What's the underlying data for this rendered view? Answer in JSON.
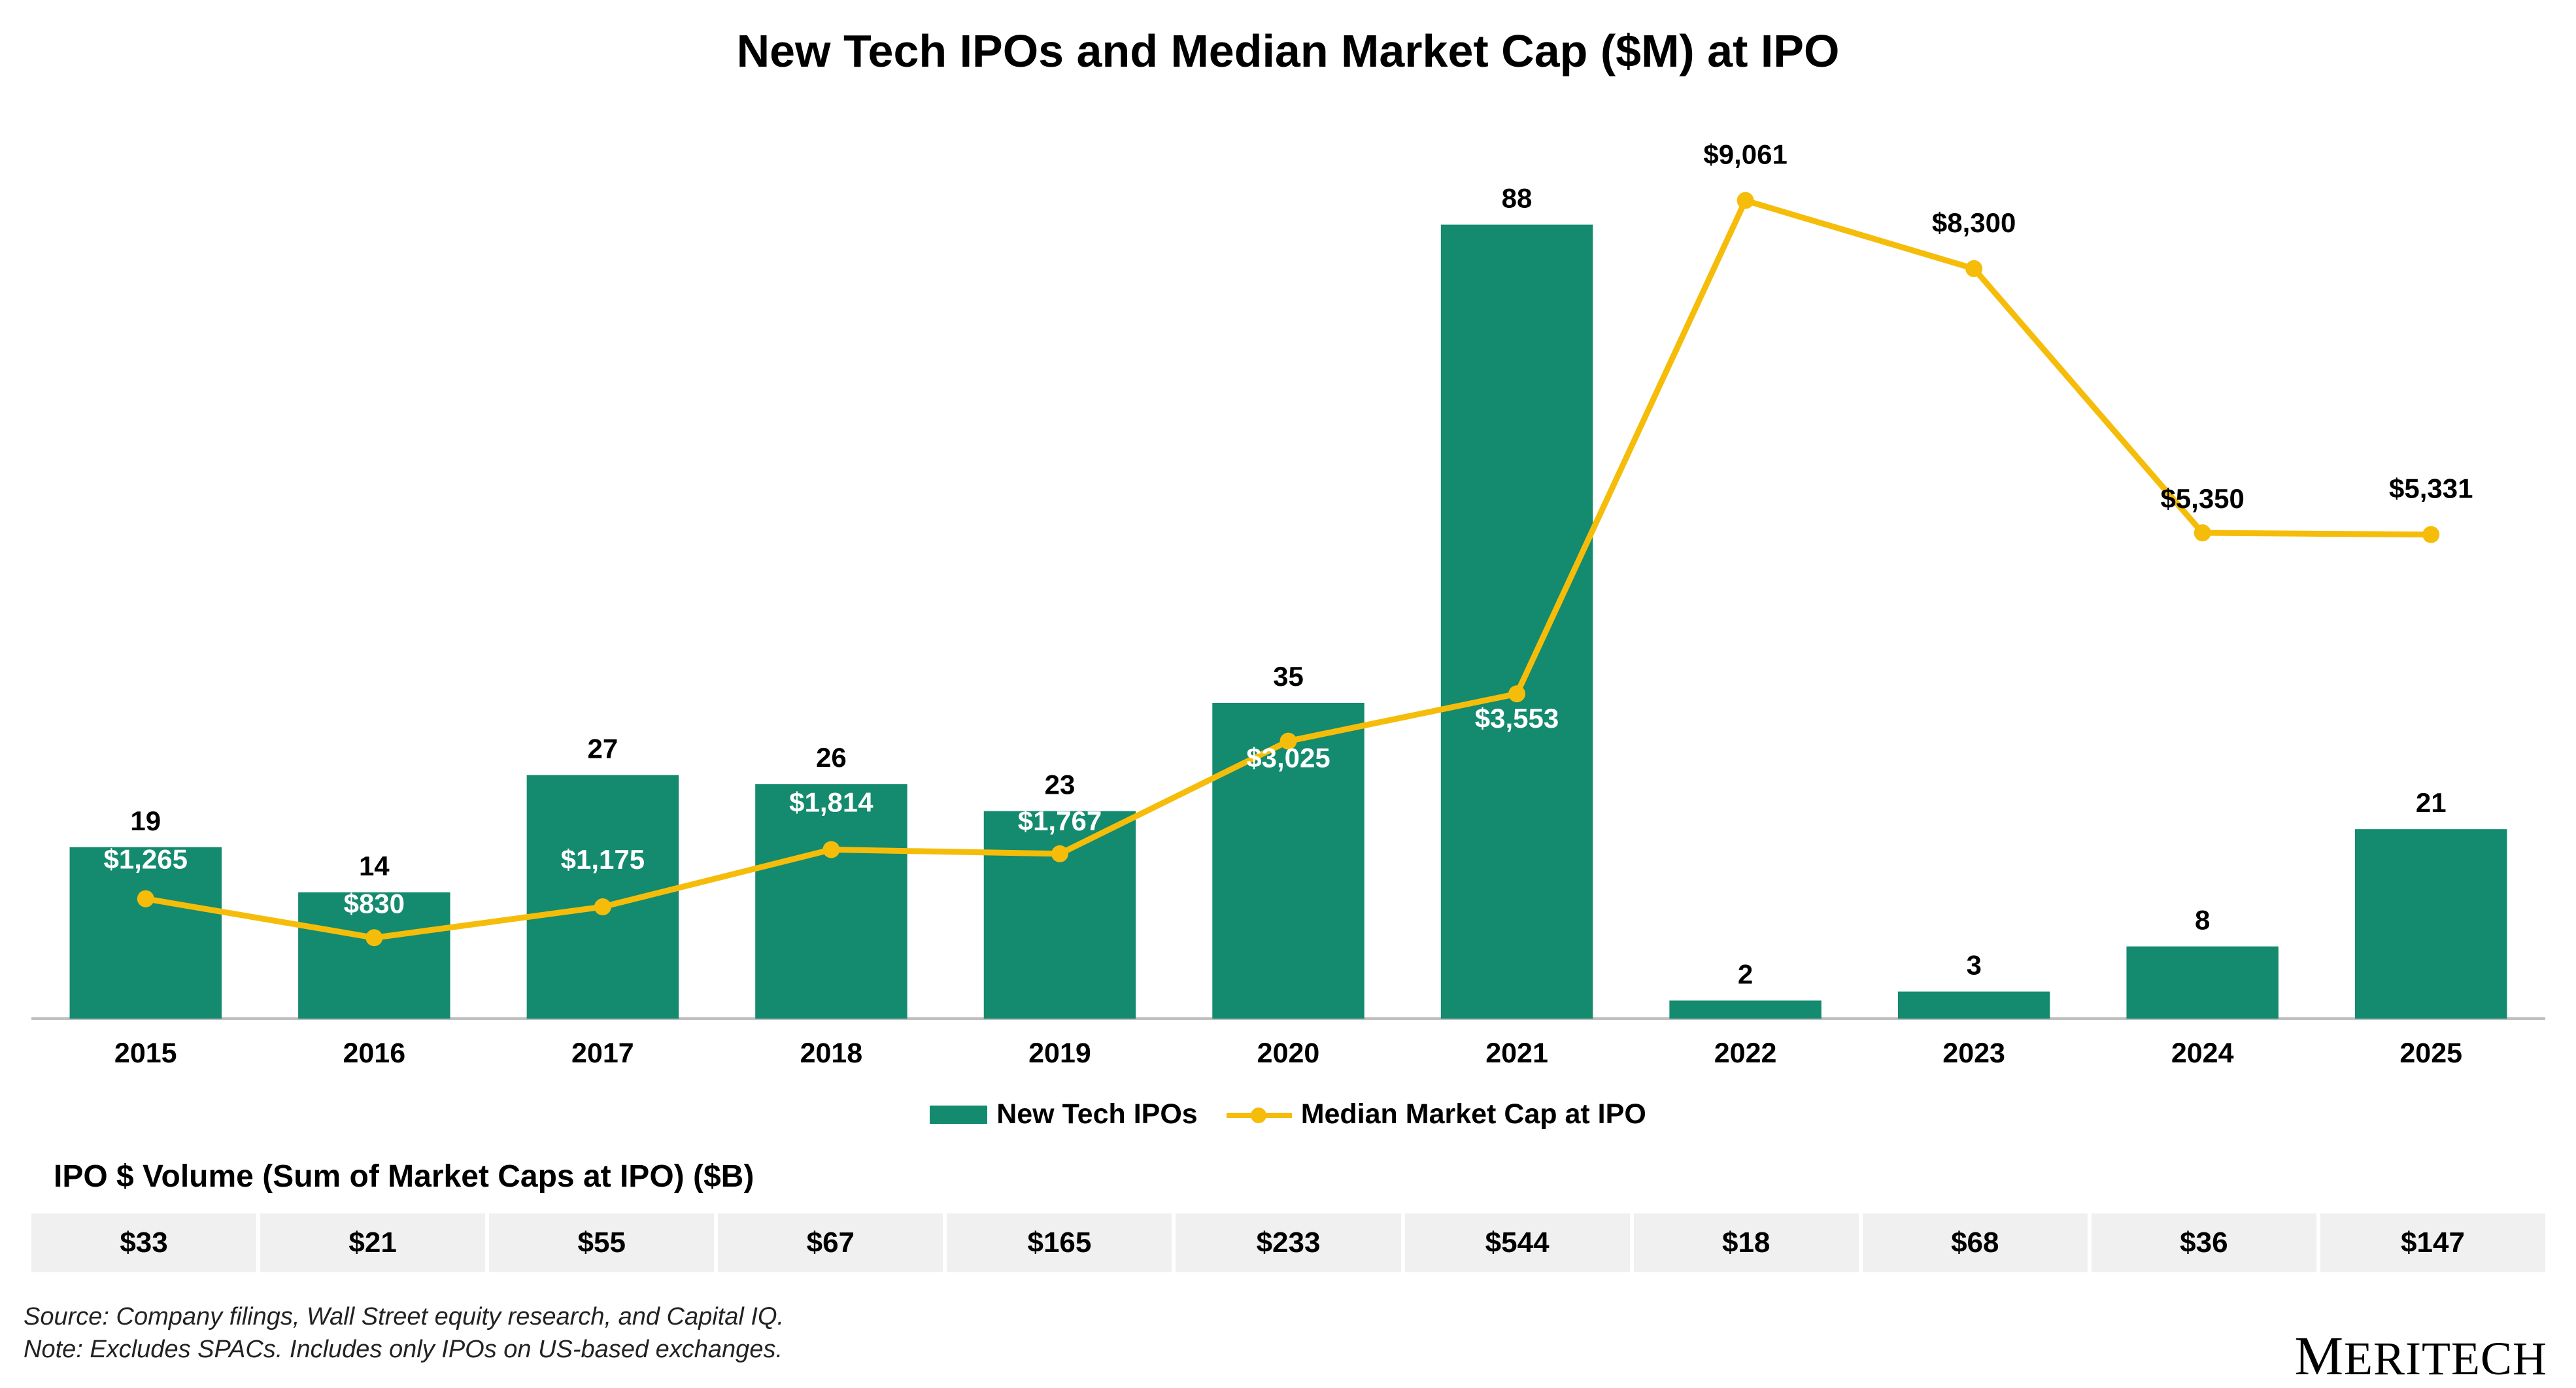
{
  "title": "New Tech IPOs and Median Market Cap ($M) at IPO",
  "colors": {
    "bar": "#148A6E",
    "line": "#F5BD0A",
    "table_bg": "#F0F0F0"
  },
  "chart_data": {
    "type": "bar+line",
    "categories": [
      "2015",
      "2016",
      "2017",
      "2018",
      "2019",
      "2020",
      "2021",
      "2022",
      "2023",
      "2024",
      "2025"
    ],
    "series": [
      {
        "name": "New Tech IPOs",
        "type": "bar",
        "axis": "left",
        "values": [
          19,
          14,
          27,
          26,
          23,
          35,
          88,
          2,
          3,
          8,
          21
        ],
        "labels": [
          "19",
          "14",
          "27",
          "26",
          "23",
          "35",
          "88",
          "2",
          "3",
          "8",
          "21"
        ]
      },
      {
        "name": "Median Market Cap at IPO",
        "type": "line",
        "axis": "right",
        "values": [
          1265,
          830,
          1175,
          1814,
          1767,
          3025,
          3553,
          9061,
          8300,
          5350,
          5331
        ],
        "labels": [
          "$1,265",
          "$830",
          "$1,175",
          "$1,814",
          "$1,767",
          "$3,025",
          "$3,553",
          "$9,061",
          "$8,300",
          "$5,350",
          "$5,331"
        ]
      }
    ],
    "ylim_bars": [
      0,
      96
    ],
    "ylim_line": [
      0,
      10000
    ],
    "legend_position": "bottom",
    "grid": false
  },
  "volume_table": {
    "title": "IPO $ Volume (Sum of Market Caps at IPO) ($B)",
    "values": [
      "$33",
      "$21",
      "$55",
      "$67",
      "$165",
      "$233",
      "$544",
      "$18",
      "$68",
      "$36",
      "$147"
    ]
  },
  "footnotes": {
    "source": "Source: Company filings, Wall Street equity research, and Capital IQ.",
    "note": "Note: Excludes SPACs. Includes only IPOs on US-based exchanges."
  },
  "logo": {
    "first": "M",
    "rest": "ERITECH"
  }
}
